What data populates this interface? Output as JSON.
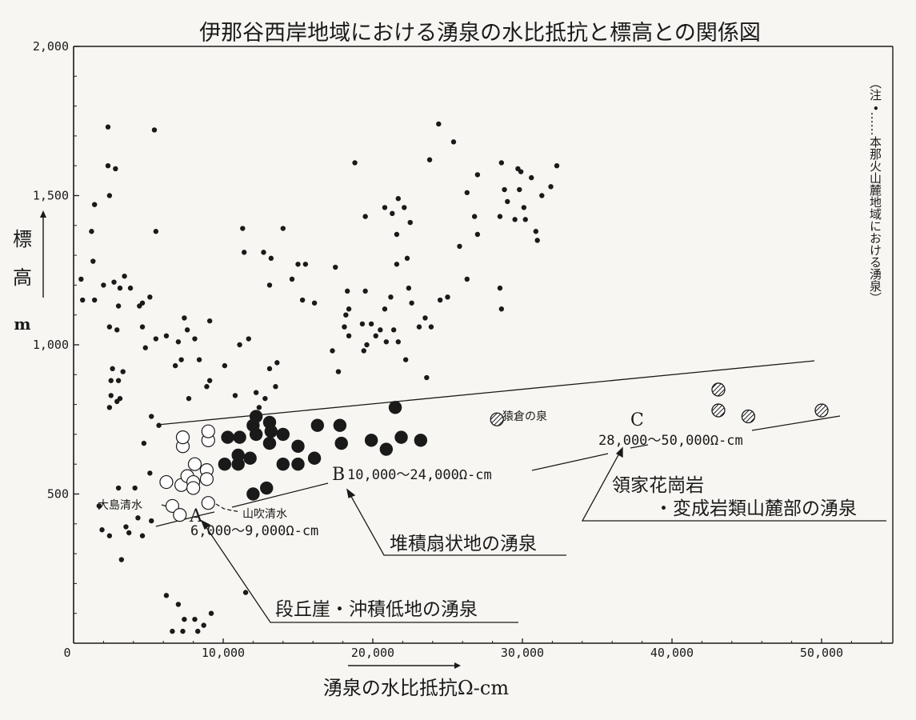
{
  "chart_data": {
    "type": "scatter",
    "title": "伊那谷西岸地域における湧泉の水比抵抗と標高との関係図",
    "xlabel": "湧泉の水比抵抗Ω-cm",
    "ylabel_chars": [
      "標",
      "高",
      "m"
    ],
    "xlim": [
      0,
      55000
    ],
    "ylim": [
      0,
      2000
    ],
    "x_ticks": [
      0,
      10000,
      20000,
      30000,
      40000,
      50000
    ],
    "x_tick_labels": [
      "0",
      "10,000",
      "20,000",
      "30,000",
      "40,000",
      "50,000"
    ],
    "y_ticks": [
      500,
      1000,
      1500,
      2000
    ],
    "y_tick_labels": [
      "500",
      "1,000",
      "1,500",
      "2,000"
    ],
    "grid": false,
    "legend_position": "right-vertical",
    "note": "（注 •……本那火山麓地域における湧泉）",
    "series": [
      {
        "name": "本那火山麓地域における湧泉",
        "marker": "small-dot",
        "points": [
          [
            500,
            1220
          ],
          [
            600,
            1150
          ],
          [
            1200,
            1380
          ],
          [
            1400,
            1470
          ],
          [
            1300,
            1280
          ],
          [
            1400,
            1150
          ],
          [
            2000,
            1200
          ],
          [
            2300,
            1730
          ],
          [
            2300,
            1600
          ],
          [
            2400,
            1500
          ],
          [
            2800,
            1590
          ],
          [
            2700,
            1210
          ],
          [
            3100,
            1190
          ],
          [
            3000,
            1130
          ],
          [
            3400,
            1230
          ],
          [
            3800,
            1190
          ],
          [
            4400,
            1130
          ],
          [
            4600,
            1140
          ],
          [
            5100,
            1160
          ],
          [
            5400,
            1720
          ],
          [
            5500,
            1380
          ],
          [
            2400,
            1060
          ],
          [
            2900,
            1050
          ],
          [
            4600,
            1060
          ],
          [
            4800,
            990
          ],
          [
            5500,
            1020
          ],
          [
            2600,
            920
          ],
          [
            2500,
            880
          ],
          [
            3000,
            880
          ],
          [
            3300,
            910
          ],
          [
            2500,
            830
          ],
          [
            3100,
            820
          ],
          [
            2400,
            790
          ],
          [
            2900,
            810
          ],
          [
            6200,
            1030
          ],
          [
            7000,
            1010
          ],
          [
            6800,
            930
          ],
          [
            7400,
            1090
          ],
          [
            7600,
            1050
          ],
          [
            7200,
            950
          ],
          [
            8100,
            1020
          ],
          [
            9100,
            1080
          ],
          [
            8400,
            950
          ],
          [
            8900,
            860
          ],
          [
            9100,
            880
          ],
          [
            7700,
            820
          ],
          [
            5200,
            760
          ],
          [
            5700,
            730
          ],
          [
            10100,
            930
          ],
          [
            11100,
            1000
          ],
          [
            11700,
            1020
          ],
          [
            10800,
            830
          ],
          [
            11300,
            1390
          ],
          [
            11400,
            1310
          ],
          [
            12700,
            1310
          ],
          [
            13200,
            1290
          ],
          [
            13100,
            1200
          ],
          [
            13100,
            920
          ],
          [
            13600,
            940
          ],
          [
            13500,
            860
          ],
          [
            14000,
            1390
          ],
          [
            14600,
            1220
          ],
          [
            15000,
            1270
          ],
          [
            15500,
            1270
          ],
          [
            15300,
            1150
          ],
          [
            16100,
            1140
          ],
          [
            12200,
            840
          ],
          [
            12400,
            790
          ],
          [
            12800,
            820
          ],
          [
            17500,
            1260
          ],
          [
            17300,
            980
          ],
          [
            18200,
            1100
          ],
          [
            17700,
            910
          ],
          [
            18300,
            1180
          ],
          [
            18400,
            1120
          ],
          [
            18100,
            1060
          ],
          [
            18400,
            1030
          ],
          [
            18800,
            1610
          ],
          [
            19500,
            1430
          ],
          [
            19300,
            1070
          ],
          [
            19500,
            1180
          ],
          [
            19600,
            1000
          ],
          [
            19400,
            980
          ],
          [
            19900,
            1070
          ],
          [
            20200,
            1030
          ],
          [
            20500,
            1050
          ],
          [
            20800,
            1460
          ],
          [
            20900,
            1010
          ],
          [
            21300,
            1440
          ],
          [
            21700,
            1490
          ],
          [
            21600,
            1370
          ],
          [
            21600,
            1270
          ],
          [
            22100,
            1460
          ],
          [
            21400,
            1050
          ],
          [
            21700,
            1010
          ],
          [
            20800,
            1120
          ],
          [
            21200,
            1160
          ],
          [
            22500,
            1410
          ],
          [
            22300,
            1290
          ],
          [
            22400,
            1190
          ],
          [
            22600,
            1140
          ],
          [
            22200,
            950
          ],
          [
            23100,
            1060
          ],
          [
            23500,
            1090
          ],
          [
            23800,
            1620
          ],
          [
            24400,
            1740
          ],
          [
            23600,
            890
          ],
          [
            23900,
            1060
          ],
          [
            24500,
            1150
          ],
          [
            25000,
            1160
          ],
          [
            25400,
            1680
          ],
          [
            25800,
            1330
          ],
          [
            26300,
            1510
          ],
          [
            26300,
            1220
          ],
          [
            26800,
            1430
          ],
          [
            27000,
            1370
          ],
          [
            27000,
            1570
          ],
          [
            28500,
            1430
          ],
          [
            28600,
            1610
          ],
          [
            28800,
            1520
          ],
          [
            29000,
            1480
          ],
          [
            29500,
            1420
          ],
          [
            29700,
            1590
          ],
          [
            29800,
            1520
          ],
          [
            30200,
            1420
          ],
          [
            30600,
            1560
          ],
          [
            30900,
            1380
          ],
          [
            31000,
            1350
          ],
          [
            31300,
            1500
          ],
          [
            31900,
            1530
          ],
          [
            32300,
            1600
          ],
          [
            28500,
            1190
          ],
          [
            28600,
            1120
          ],
          [
            29900,
            1580
          ],
          [
            30100,
            1460
          ],
          [
            1700,
            460
          ],
          [
            1900,
            380
          ],
          [
            2400,
            360
          ],
          [
            3200,
            280
          ],
          [
            3500,
            390
          ],
          [
            3700,
            370
          ],
          [
            4100,
            520
          ],
          [
            4300,
            420
          ],
          [
            4600,
            360
          ],
          [
            5200,
            410
          ],
          [
            5100,
            570
          ],
          [
            4700,
            670
          ],
          [
            3000,
            520
          ],
          [
            6200,
            160
          ],
          [
            6600,
            40
          ],
          [
            7000,
            130
          ],
          [
            7400,
            80
          ],
          [
            7300,
            40
          ],
          [
            8100,
            80
          ],
          [
            8300,
            40
          ],
          [
            8700,
            60
          ],
          [
            9200,
            100
          ],
          [
            11500,
            170
          ]
        ]
      },
      {
        "name": "段丘崖・沖積低地の湧泉",
        "marker": "open-circle",
        "range_label": "6,000～9,000Ω-cm",
        "points": [
          [
            6200,
            540
          ],
          [
            6600,
            460
          ],
          [
            7100,
            430
          ],
          [
            7200,
            530
          ],
          [
            7300,
            660
          ],
          [
            7300,
            690
          ],
          [
            7600,
            560
          ],
          [
            8000,
            540
          ],
          [
            8100,
            600
          ],
          [
            8000,
            520
          ],
          [
            8900,
            580
          ],
          [
            8900,
            550
          ],
          [
            9000,
            680
          ],
          [
            9000,
            710
          ],
          [
            9000,
            470
          ]
        ]
      },
      {
        "name": "堆積扇状地の湧泉",
        "marker": "filled-circle",
        "range_label": "10,000～24,000Ω-cm",
        "points": [
          [
            10100,
            600
          ],
          [
            10300,
            690
          ],
          [
            11000,
            600
          ],
          [
            11000,
            630
          ],
          [
            11100,
            690
          ],
          [
            11800,
            620
          ],
          [
            12000,
            500
          ],
          [
            12000,
            730
          ],
          [
            12200,
            760
          ],
          [
            12200,
            700
          ],
          [
            12900,
            520
          ],
          [
            13100,
            740
          ],
          [
            13100,
            670
          ],
          [
            13200,
            710
          ],
          [
            14000,
            600
          ],
          [
            14000,
            700
          ],
          [
            15000,
            660
          ],
          [
            15000,
            600
          ],
          [
            16100,
            620
          ],
          [
            16300,
            730
          ],
          [
            17800,
            730
          ],
          [
            17900,
            670
          ],
          [
            19900,
            680
          ],
          [
            20900,
            650
          ],
          [
            21500,
            790
          ],
          [
            21900,
            690
          ],
          [
            23200,
            680
          ]
        ]
      },
      {
        "name": "領家花崗岩・変成岩類山麓部の湧泉",
        "marker": "hatched-circle",
        "range_label": "28,000～50,000Ω-cm",
        "points": [
          [
            28300,
            750
          ],
          [
            43100,
            850
          ],
          [
            43100,
            780
          ],
          [
            45100,
            760
          ],
          [
            50000,
            780
          ]
        ]
      }
    ],
    "annotations": {
      "oshima_label": "大島清水",
      "yamabuki_label": "山吹清水",
      "sarukura_label": "猿倉の泉",
      "group_a_letter": "A",
      "group_a_range": "6,000～9,000Ω-cm",
      "group_a_desc": "段丘崖・沖積低地の湧泉",
      "group_b_letter": "B",
      "group_b_range": "10,000～24,000Ω-cm",
      "group_b_desc": "堆積扇状地の湧泉",
      "group_c_letter": "C",
      "group_c_range": "28,000～50,000Ω-cm",
      "group_c_desc_line1": "領家花崗岩",
      "group_c_desc_line2": "・変成岩類山麓部の湧泉"
    }
  }
}
